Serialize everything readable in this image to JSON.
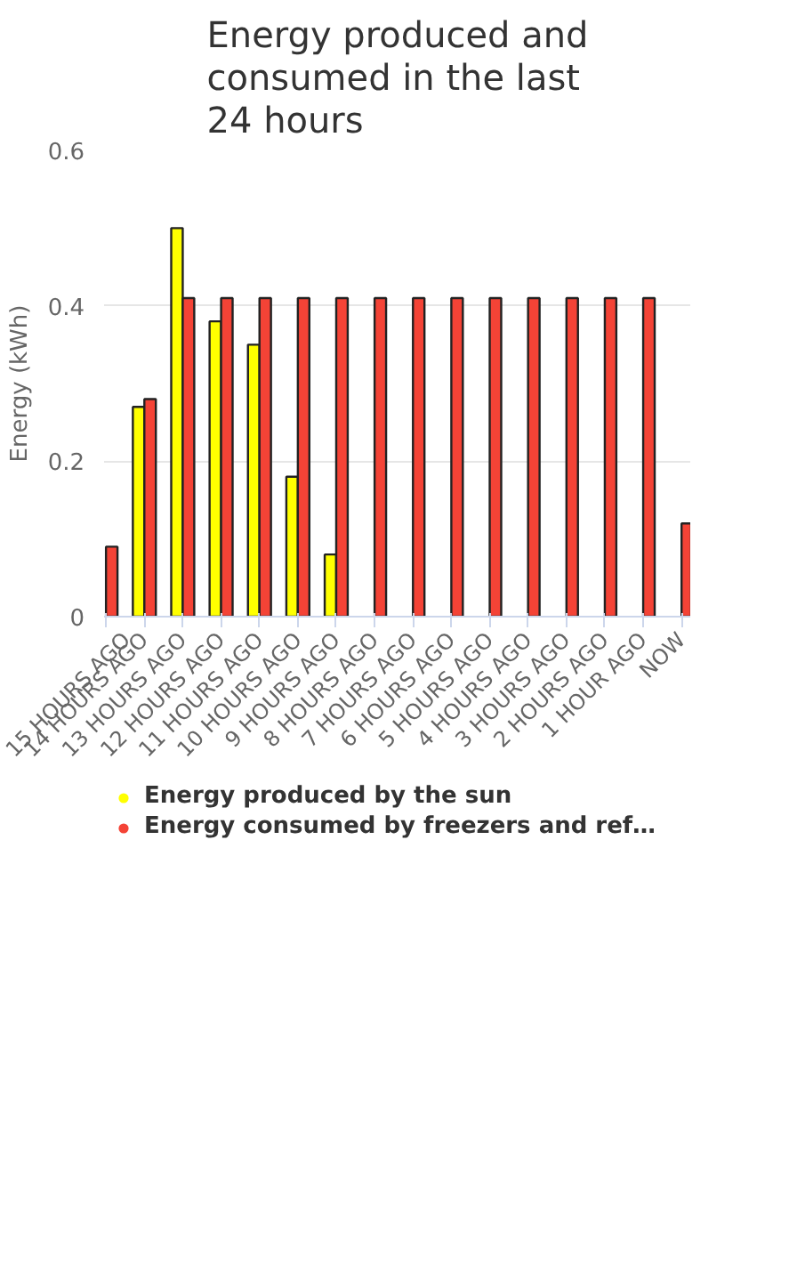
{
  "chart_data": {
    "type": "bar",
    "title": "Energy produced and consumed in the last 24 hours",
    "ylabel": "Energy (kWh)",
    "categories": [
      "15 HOURS AGO",
      "14 HOURS AGO",
      "13 HOURS AGO",
      "12 HOURS AGO",
      "11 HOURS AGO",
      "10 HOURS AGO",
      "9 HOURS AGO",
      "8 HOURS AGO",
      "7 HOURS AGO",
      "6 HOURS AGO",
      "5 HOURS AGO",
      "4 HOURS AGO",
      "3 HOURS AGO",
      "2 HOURS AGO",
      "1 HOUR AGO",
      "NOW"
    ],
    "series": [
      {
        "name": "Energy produced by the sun",
        "color": "#ffff00",
        "values": [
          0,
          0.27,
          0.5,
          0.38,
          0.35,
          0.18,
          0.08,
          0,
          0,
          0,
          0,
          0,
          0,
          0,
          0,
          0
        ]
      },
      {
        "name": "Energy consumed by freezers and ref…",
        "color": "#f44336",
        "values": [
          0.09,
          0.28,
          0.41,
          0.41,
          0.41,
          0.41,
          0.41,
          0.41,
          0.41,
          0.41,
          0.41,
          0.41,
          0.41,
          0.41,
          0.41,
          0.12
        ]
      }
    ],
    "ylim": [
      0,
      0.6
    ],
    "yticks": [
      0,
      0.2,
      0.4,
      0.6
    ],
    "grid": "y",
    "legend": "bottom"
  }
}
